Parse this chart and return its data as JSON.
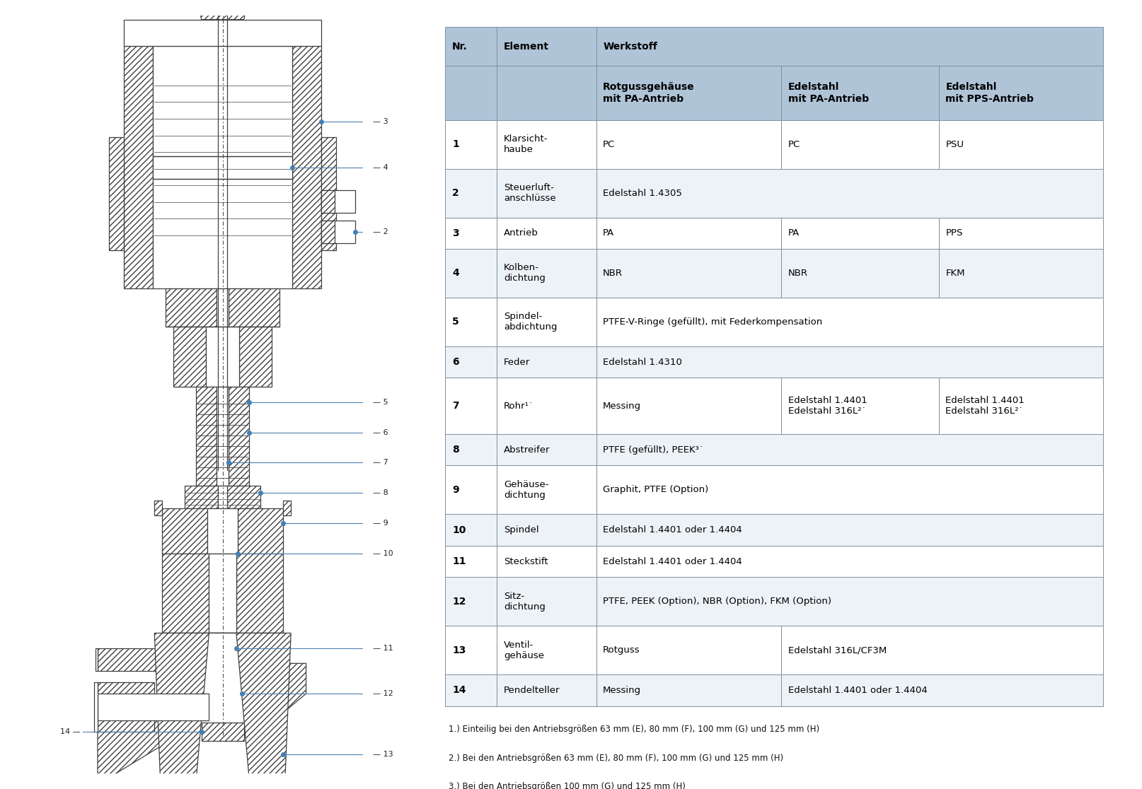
{
  "background_color": "#ffffff",
  "table_header_bg": "#b0c4d8",
  "table_row_white": "#ffffff",
  "table_row_light": "#eef2f6",
  "table_border_color": "#8090a0",
  "footnotes": [
    "1.) Einteilig bei den Antriebsgrößen 63 mm (E), 80 mm (F), 100 mm (G) und 125 mm (H)",
    "2.) Bei den Antriebsgrößen 63 mm (E), 80 mm (F), 100 mm (G) und 125 mm (H)",
    "3.) Bei den Antriebsgrößen 100 mm (G) und 125 mm (H)"
  ],
  "diagram_color": "#404040",
  "line_color": "#5080b0",
  "label_color": "#202020"
}
